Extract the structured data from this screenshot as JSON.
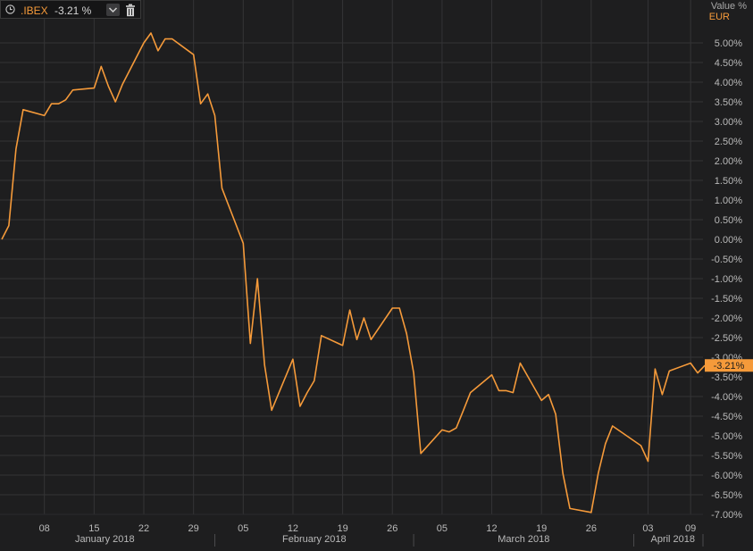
{
  "header": {
    "ticker": ".IBEX",
    "change": "-3.21 %",
    "value_label": "Value %",
    "currency": "EUR",
    "icons": [
      "clock-icon",
      "chevron-down-icon",
      "trash-icon"
    ]
  },
  "chart_data": {
    "type": "line",
    "series": [
      {
        "color": "#f59a3a",
        "points": [
          [
            "2018-01-02",
            0.0
          ],
          [
            "2018-01-03",
            0.35
          ],
          [
            "2018-01-04",
            2.3
          ],
          [
            "2018-01-05",
            3.3
          ],
          [
            "2018-01-08",
            3.15
          ],
          [
            "2018-01-09",
            3.45
          ],
          [
            "2018-01-10",
            3.45
          ],
          [
            "2018-01-11",
            3.55
          ],
          [
            "2018-01-12",
            3.8
          ],
          [
            "2018-01-15",
            3.85
          ],
          [
            "2018-01-16",
            4.4
          ],
          [
            "2018-01-17",
            3.9
          ],
          [
            "2018-01-18",
            3.5
          ],
          [
            "2018-01-19",
            3.95
          ],
          [
            "2018-01-22",
            5.0
          ],
          [
            "2018-01-23",
            5.25
          ],
          [
            "2018-01-24",
            4.8
          ],
          [
            "2018-01-25",
            5.1
          ],
          [
            "2018-01-26",
            5.1
          ],
          [
            "2018-01-29",
            4.7
          ],
          [
            "2018-01-30",
            3.45
          ],
          [
            "2018-01-31",
            3.7
          ],
          [
            "2018-02-01",
            3.15
          ],
          [
            "2018-02-02",
            1.3
          ],
          [
            "2018-02-05",
            -0.1
          ],
          [
            "2018-02-06",
            -2.65
          ],
          [
            "2018-02-07",
            -1.0
          ],
          [
            "2018-02-08",
            -3.2
          ],
          [
            "2018-02-09",
            -4.35
          ],
          [
            "2018-02-12",
            -3.05
          ],
          [
            "2018-02-13",
            -4.25
          ],
          [
            "2018-02-14",
            -3.9
          ],
          [
            "2018-02-15",
            -3.6
          ],
          [
            "2018-02-16",
            -2.45
          ],
          [
            "2018-02-19",
            -2.7
          ],
          [
            "2018-02-20",
            -1.8
          ],
          [
            "2018-02-21",
            -2.55
          ],
          [
            "2018-02-22",
            -2.0
          ],
          [
            "2018-02-23",
            -2.55
          ],
          [
            "2018-02-26",
            -1.75
          ],
          [
            "2018-02-27",
            -1.75
          ],
          [
            "2018-02-28",
            -2.4
          ],
          [
            "2018-03-01",
            -3.4
          ],
          [
            "2018-03-02",
            -5.45
          ],
          [
            "2018-03-05",
            -4.85
          ],
          [
            "2018-03-06",
            -4.9
          ],
          [
            "2018-03-07",
            -4.8
          ],
          [
            "2018-03-08",
            -4.35
          ],
          [
            "2018-03-09",
            -3.9
          ],
          [
            "2018-03-12",
            -3.45
          ],
          [
            "2018-03-13",
            -3.85
          ],
          [
            "2018-03-14",
            -3.85
          ],
          [
            "2018-03-15",
            -3.9
          ],
          [
            "2018-03-16",
            -3.15
          ],
          [
            "2018-03-19",
            -4.1
          ],
          [
            "2018-03-20",
            -3.95
          ],
          [
            "2018-03-21",
            -4.45
          ],
          [
            "2018-03-22",
            -5.95
          ],
          [
            "2018-03-23",
            -6.85
          ],
          [
            "2018-03-26",
            -6.95
          ],
          [
            "2018-03-27",
            -5.95
          ],
          [
            "2018-03-28",
            -5.2
          ],
          [
            "2018-03-29",
            -4.75
          ],
          [
            "2018-04-02",
            -5.25
          ],
          [
            "2018-04-03",
            -5.65
          ],
          [
            "2018-04-04",
            -3.3
          ],
          [
            "2018-04-05",
            -3.95
          ],
          [
            "2018-04-06",
            -3.35
          ],
          [
            "2018-04-09",
            -3.15
          ],
          [
            "2018-04-10",
            -3.4
          ],
          [
            "2018-04-11",
            -3.21
          ]
        ]
      }
    ],
    "ylim": [
      -7.0,
      5.0
    ],
    "y_ticks": [
      5.0,
      4.5,
      4.0,
      3.5,
      3.0,
      2.5,
      2.0,
      1.5,
      1.0,
      0.5,
      0.0,
      -0.5,
      -1.0,
      -1.5,
      -2.0,
      -2.5,
      -3.0,
      -3.5,
      -4.0,
      -4.5,
      -5.0,
      -5.5,
      -6.0,
      -6.5,
      -7.0
    ],
    "y_tick_labels": [
      "5.00%",
      "4.50%",
      "4.00%",
      "3.50%",
      "3.00%",
      "2.50%",
      "2.00%",
      "1.50%",
      "1.00%",
      "0.50%",
      "0.00%",
      "-0.50%",
      "-1.00%",
      "-1.50%",
      "-2.00%",
      "-2.50%",
      "-3.00%",
      "-3.50%",
      "-4.00%",
      "-4.50%",
      "-5.00%",
      "-5.50%",
      "-6.00%",
      "-6.50%",
      "-7.00%"
    ],
    "x_ticks": [
      {
        "date": "2018-01-08",
        "label": "08"
      },
      {
        "date": "2018-01-15",
        "label": "15"
      },
      {
        "date": "2018-01-22",
        "label": "22"
      },
      {
        "date": "2018-01-29",
        "label": "29"
      },
      {
        "date": "2018-02-05",
        "label": "05"
      },
      {
        "date": "2018-02-12",
        "label": "12"
      },
      {
        "date": "2018-02-19",
        "label": "19"
      },
      {
        "date": "2018-02-26",
        "label": "26"
      },
      {
        "date": "2018-03-05",
        "label": "05"
      },
      {
        "date": "2018-03-12",
        "label": "12"
      },
      {
        "date": "2018-03-19",
        "label": "19"
      },
      {
        "date": "2018-03-26",
        "label": "26"
      },
      {
        "date": "2018-04-03",
        "label": "03"
      },
      {
        "date": "2018-04-09",
        "label": "09"
      }
    ],
    "month_labels": [
      {
        "label": "January 2018",
        "start": "2018-01-01",
        "end": "2018-02-01"
      },
      {
        "label": "February 2018",
        "start": "2018-02-01",
        "end": "2018-03-01"
      },
      {
        "label": "March 2018",
        "start": "2018-03-01",
        "end": "2018-04-01"
      },
      {
        "label": "April 2018",
        "start": "2018-04-01",
        "end": "2018-04-12"
      }
    ],
    "last_value_marker": {
      "value": -3.21,
      "label": "-3.21%",
      "color": "#f59a3a"
    },
    "grid": true,
    "colors": {
      "background": "#1e1e1f",
      "grid": "#343436",
      "line": "#f59a3a",
      "text": "#b9b9b9"
    }
  }
}
